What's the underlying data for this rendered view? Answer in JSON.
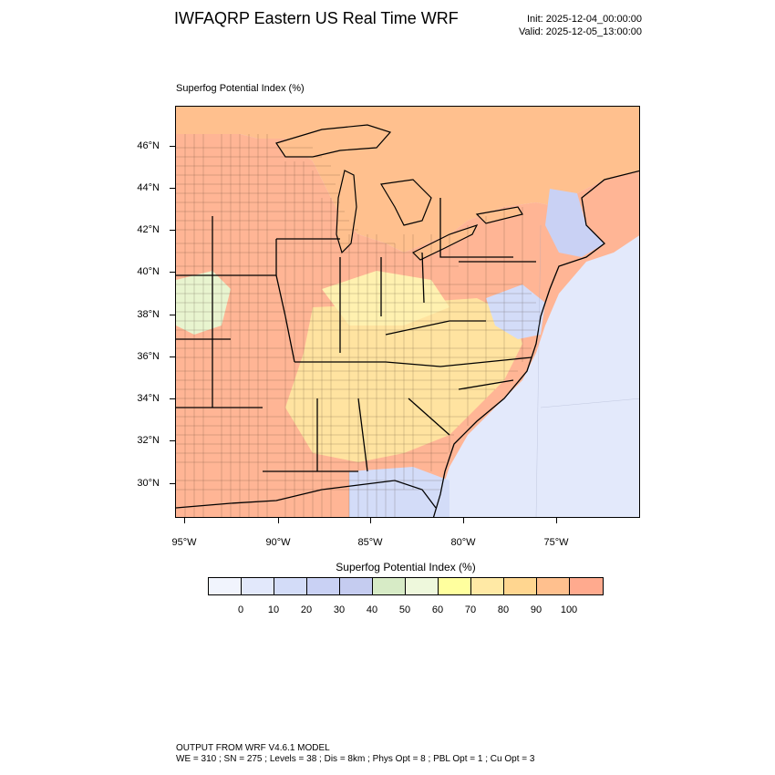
{
  "header": {
    "title": "IWFAQRP Eastern US Real Time WRF",
    "init": "Init: 2025-12-04_00:00:00",
    "valid": "Valid: 2025-12-05_13:00:00"
  },
  "map": {
    "field_label": "Superfog Potential Index   (%)",
    "lat_labels": [
      "46°N",
      "44°N",
      "42°N",
      "40°N",
      "38°N",
      "36°N",
      "34°N",
      "32°N",
      "30°N"
    ],
    "lon_labels": [
      "95°W",
      "90°W",
      "85°W",
      "80°W",
      "75°W"
    ]
  },
  "legend": {
    "title": "Superfog Potential Index  (%)",
    "labels": [
      "0",
      "10",
      "20",
      "30",
      "40",
      "50",
      "60",
      "70",
      "80",
      "90",
      "100"
    ],
    "colors": [
      "#f1f4fd",
      "#e2e8fb",
      "#d3dcf8",
      "#c9d1f4",
      "#c5ccf0",
      "#d7ebc6",
      "#eef8dc",
      "#ffff9e",
      "#ffe9a5",
      "#ffd690",
      "#ffc08e",
      "#ffaa8e"
    ]
  },
  "footer": {
    "line1": "OUTPUT FROM WRF V4.6.1 MODEL",
    "line2": "WE = 310 ; SN = 275 ; Levels = 38 ; Dis = 8km ; Phys Opt = 8 ; PBL Opt = 1 ; Cu Opt = 3"
  }
}
